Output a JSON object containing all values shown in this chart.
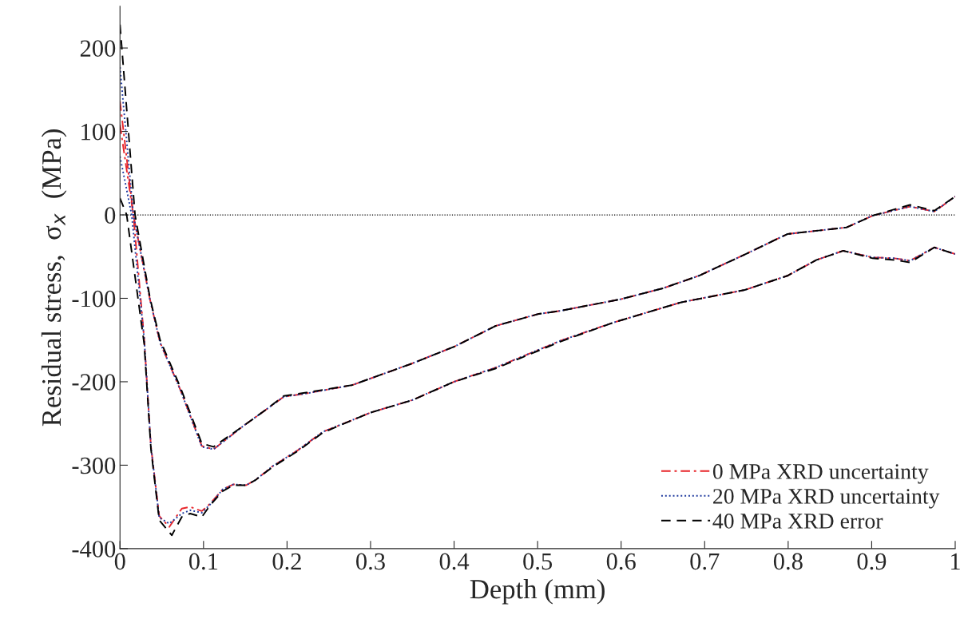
{
  "chart_data": {
    "type": "line",
    "xlabel": "Depth (mm)",
    "ylabel": "Residual stress,  σ$_{x}$  (MPa)",
    "xlim": [
      0,
      1
    ],
    "ylim": [
      -400,
      250
    ],
    "xticks": [
      0,
      {
        "value": 0.1,
        "label": "0.1"
      },
      {
        "value": 0.2,
        "label": "0.2"
      },
      {
        "value": 0.3,
        "label": "0.3"
      },
      {
        "value": 0.4,
        "label": "0.4"
      },
      {
        "value": 0.5,
        "label": "0.5"
      },
      {
        "value": 0.6,
        "label": "0.6"
      },
      {
        "value": 0.7,
        "label": "0.7"
      },
      {
        "value": 0.8,
        "label": "0.8"
      },
      {
        "value": 0.9,
        "label": "0.9"
      },
      1
    ],
    "yticks": [
      -400,
      -300,
      -200,
      -100,
      0,
      100,
      200
    ],
    "grid": false,
    "legend": "bottom right",
    "marker": "none",
    "ref_lines": [
      {
        "axis": "y",
        "value": 0,
        "color": "#000000",
        "line_style": "dotted"
      }
    ],
    "series": [
      {
        "name": "0 MPa XRD uncertainty",
        "color": "#e8262b",
        "line_style": "dashdot",
        "x": [
          0,
          0.016,
          0.036,
          0.048,
          0.072,
          0.098,
          0.112,
          0.149,
          0.174,
          0.196,
          0.223,
          0.278,
          0.35,
          0.4,
          0.45,
          0.5,
          0.527,
          0.6,
          0.65,
          0.693,
          0.745,
          0.799,
          0.87,
          0.901,
          0.946,
          0.975,
          1.0
        ],
        "values": [
          136,
          0,
          -102,
          -153,
          -209,
          -277,
          -281,
          -252,
          -234,
          -218,
          -214,
          -204,
          -178,
          -158,
          -133,
          -119,
          -115,
          -101,
          -88,
          -73,
          -49,
          -23,
          -15,
          -1,
          10,
          4,
          22
        ]
      },
      {
        "color": "#e8262b",
        "line_style": "dashdot",
        "x": [
          0,
          0.016,
          0.029,
          0.037,
          0.047,
          0.059,
          0.074,
          0.084,
          0.098,
          0.108,
          0.123,
          0.136,
          0.151,
          0.162,
          0.183,
          0.213,
          0.243,
          0.278,
          0.3,
          0.35,
          0.4,
          0.45,
          0.527,
          0.591,
          0.671,
          0.748,
          0.799,
          0.834,
          0.866,
          0.901,
          0.927,
          0.946,
          0.975,
          1.0
        ],
        "values": [
          108,
          0,
          -149,
          -277,
          -361,
          -374,
          -352,
          -350,
          -355,
          -346,
          -329,
          -323,
          -324,
          -318,
          -301,
          -282,
          -260,
          -246,
          -237,
          -222,
          -200,
          -183,
          -151,
          -129,
          -105,
          -90,
          -73,
          -54,
          -43,
          -51,
          -52,
          -55,
          -39,
          -47
        ]
      },
      {
        "name": "20 MPa XRD uncertainty",
        "color": "#1f3a9e",
        "line_style": "dotted",
        "x": [
          0,
          0.016,
          0.036,
          0.048,
          0.072,
          0.098,
          0.112,
          0.149,
          0.174,
          0.196,
          0.223,
          0.278,
          0.35,
          0.4,
          0.45,
          0.5,
          0.527,
          0.6,
          0.65,
          0.693,
          0.745,
          0.799,
          0.87,
          0.901,
          0.946,
          0.975,
          1.0
        ],
        "values": [
          177,
          0,
          -102,
          -153,
          -209,
          -278,
          -281,
          -252,
          -234,
          -218,
          -214,
          -204,
          -178,
          -158,
          -133,
          -119,
          -115,
          -101,
          -88,
          -73,
          -49,
          -23,
          -15,
          -1,
          10,
          4,
          22
        ]
      },
      {
        "color": "#1f3a9e",
        "line_style": "dotted",
        "x": [
          0,
          0.014,
          0.029,
          0.037,
          0.047,
          0.059,
          0.074,
          0.084,
          0.098,
          0.108,
          0.123,
          0.136,
          0.151,
          0.162,
          0.183,
          0.213,
          0.243,
          0.278,
          0.3,
          0.35,
          0.4,
          0.45,
          0.527,
          0.591,
          0.671,
          0.748,
          0.799,
          0.834,
          0.866,
          0.901,
          0.927,
          0.946,
          0.975,
          1.0
        ],
        "values": [
          70,
          0,
          -149,
          -277,
          -363,
          -370,
          -358,
          -354,
          -357,
          -347,
          -329,
          -323,
          -324,
          -318,
          -301,
          -282,
          -260,
          -246,
          -237,
          -222,
          -200,
          -183,
          -151,
          -129,
          -105,
          -90,
          -73,
          -54,
          -43,
          -51,
          -52,
          -55,
          -39,
          -47
        ]
      },
      {
        "name": "40 MPa XRD error",
        "color": "#000000",
        "line_style": "dashed",
        "x": [
          0,
          0.018,
          0.036,
          0.048,
          0.072,
          0.098,
          0.112,
          0.149,
          0.174,
          0.196,
          0.223,
          0.278,
          0.35,
          0.4,
          0.45,
          0.5,
          0.527,
          0.6,
          0.65,
          0.693,
          0.745,
          0.799,
          0.87,
          0.901,
          0.946,
          0.975,
          1.0
        ],
        "values": [
          228,
          0,
          -100,
          -150,
          -206,
          -274,
          -278,
          -252,
          -234,
          -217,
          -213,
          -204,
          -178,
          -158,
          -133,
          -119,
          -115,
          -101,
          -88,
          -73,
          -49,
          -23,
          -15,
          -1,
          12,
          5,
          22
        ]
      },
      {
        "color": "#000000",
        "line_style": "dashed",
        "x": [
          0,
          0.008,
          0.029,
          0.037,
          0.047,
          0.062,
          0.074,
          0.084,
          0.098,
          0.108,
          0.123,
          0.136,
          0.151,
          0.162,
          0.183,
          0.213,
          0.243,
          0.278,
          0.3,
          0.35,
          0.4,
          0.45,
          0.527,
          0.591,
          0.671,
          0.748,
          0.799,
          0.834,
          0.866,
          0.901,
          0.927,
          0.946,
          0.975,
          1.0
        ],
        "values": [
          20,
          0,
          -155,
          -280,
          -366,
          -384,
          -362,
          -358,
          -362,
          -348,
          -331,
          -324,
          -324,
          -318,
          -302,
          -283,
          -261,
          -246,
          -237,
          -222,
          -200,
          -184,
          -152,
          -129,
          -105,
          -90,
          -73,
          -54,
          -43,
          -52,
          -54,
          -57,
          -39,
          -47
        ]
      }
    ]
  }
}
